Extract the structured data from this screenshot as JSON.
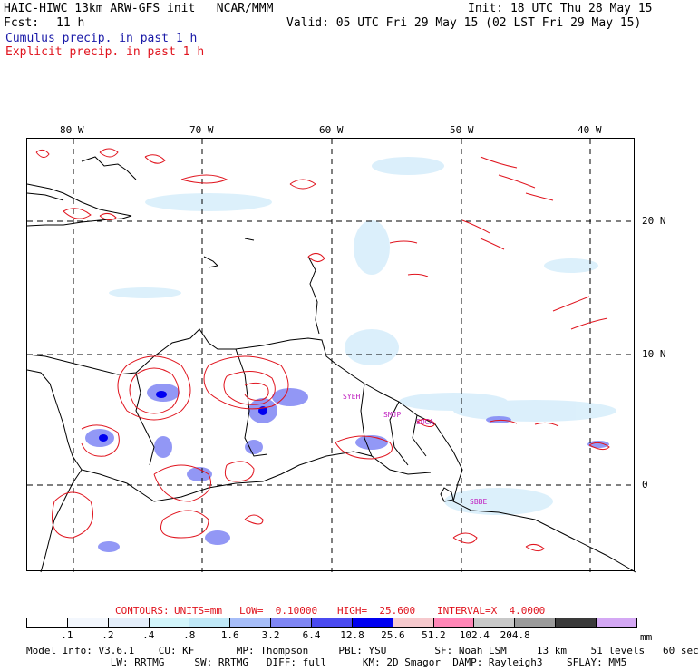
{
  "header": {
    "model_line": "HAIC-HIWC 13km ARW-GFS init   NCAR/MMM",
    "init_line": "Init: 18 UTC Thu 28 May 15",
    "fcst_label": "Fcst:",
    "fcst_value": "11 h",
    "valid_line": "Valid: 05 UTC Fri 29 May 15 (02 LST Fri 29 May 15)",
    "cumulus_label": "Cumulus precip. in past 1 h",
    "explicit_label": "Explicit precip. in past 1 h"
  },
  "map": {
    "lon_labels": [
      "80 W",
      "70 W",
      "60 W",
      "50 W",
      "40 W"
    ],
    "lat_labels": [
      "20 N",
      "10 N",
      "0"
    ],
    "stations": [
      "SYEH",
      "SMJP",
      "SOCA",
      "SBBE"
    ]
  },
  "contours": {
    "prefix": "CONTOURS:",
    "units": "UNITS=mm",
    "low": "LOW=  0.10000",
    "high": "HIGH=  25.600",
    "interval": "INTERVAL=X  4.0000"
  },
  "legend": {
    "colors": [
      "#ffffff",
      "#f3f7fd",
      "#e4eefa",
      "#d2f5fb",
      "#bfe8f7",
      "#a6bdf8",
      "#7f86f4",
      "#4a4af0",
      "#0000f0",
      "#f6c9cd",
      "#ff86b6",
      "#c8c8c8",
      "#9a9a9a",
      "#3a3a3a",
      "#d4a8f4"
    ],
    "ticks": [
      ".1",
      ".2",
      ".4",
      ".8",
      "1.6",
      "3.2",
      "6.4",
      "12.8",
      "25.6",
      "51.2",
      "102.4",
      "204.8"
    ],
    "unit": "mm"
  },
  "model_info": {
    "line1": "Model Info: V3.6.1    CU: KF       MP: Thompson     PBL: YSU        SF: Noah LSM     13 km    51 levels   60 sec",
    "line2": "              LW: RRTMG     SW: RRTMG   DIFF: full      KM: 2D Smagor  DAMP: Rayleigh3    SFLAY: MM5"
  }
}
